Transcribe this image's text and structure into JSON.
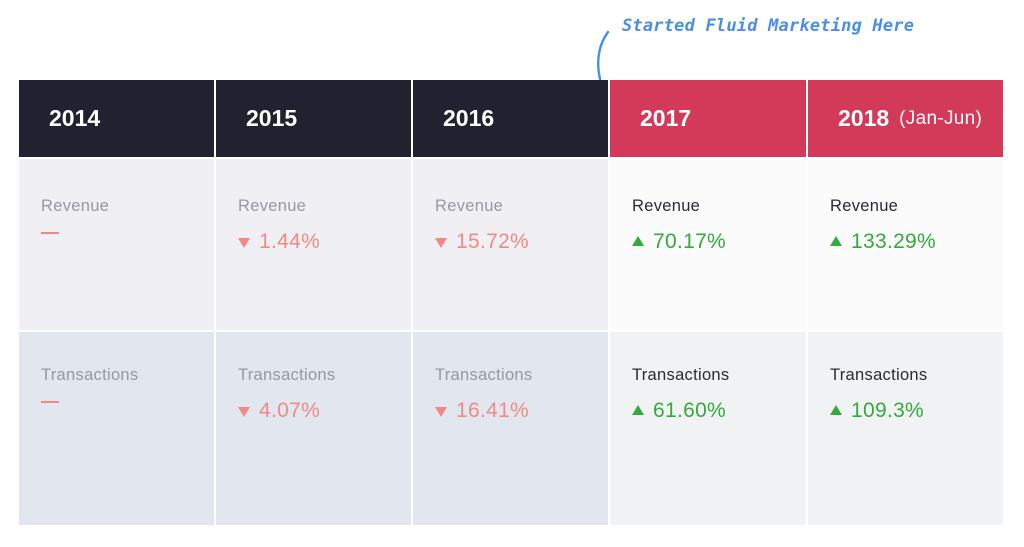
{
  "annotation": {
    "text": "Started Fluid Marketing Here",
    "color": "#4a8fe0"
  },
  "colors": {
    "header_dark": "#202230",
    "header_red": "#d33a59",
    "decline": "#f08a86",
    "growth": "#34aa3c"
  },
  "chart_data": {
    "type": "table",
    "columns": [
      {
        "year": "2014",
        "note": ""
      },
      {
        "year": "2015",
        "note": ""
      },
      {
        "year": "2016",
        "note": ""
      },
      {
        "year": "2017",
        "note": ""
      },
      {
        "year": "2018",
        "note": "(Jan-Jun)"
      }
    ],
    "rows": [
      {
        "metric": "Revenue",
        "cells": [
          {
            "direction": "none",
            "display": "",
            "value": null
          },
          {
            "direction": "down",
            "display": "1.44%",
            "value": -1.44
          },
          {
            "direction": "down",
            "display": "15.72%",
            "value": -15.72
          },
          {
            "direction": "up",
            "display": "70.17%",
            "value": 70.17
          },
          {
            "direction": "up",
            "display": "133.29%",
            "value": 133.29
          }
        ]
      },
      {
        "metric": "Transactions",
        "cells": [
          {
            "direction": "none",
            "display": "",
            "value": null
          },
          {
            "direction": "down",
            "display": "4.07%",
            "value": -4.07
          },
          {
            "direction": "down",
            "display": "16.41%",
            "value": -16.41
          },
          {
            "direction": "up",
            "display": "61.60%",
            "value": 61.6
          },
          {
            "direction": "up",
            "display": "109.3%",
            "value": 109.3
          }
        ]
      }
    ]
  }
}
